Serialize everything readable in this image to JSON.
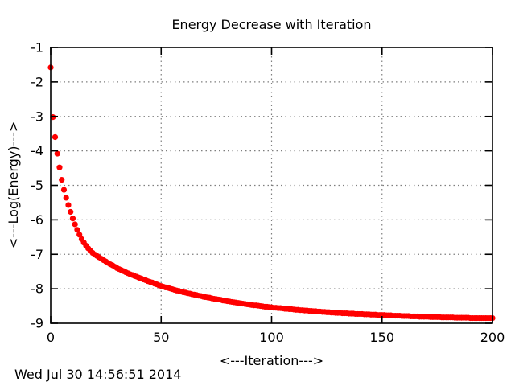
{
  "footer": {
    "timestamp": "Wed Jul 30 14:56:51 2014"
  },
  "colors": {
    "background": "#ffffff",
    "point": "#ff0000",
    "grid": "#7f7f7f",
    "axis": "#000000"
  },
  "chart_data": {
    "type": "scatter",
    "title": "Energy Decrease with Iteration",
    "xlabel": "<---Iteration--->",
    "ylabel": "<---Log(Energy)--->",
    "xlim": [
      0,
      200
    ],
    "ylim": [
      -9,
      -1
    ],
    "xticks": [
      0,
      50,
      100,
      150,
      200
    ],
    "yticks": [
      -9,
      -8,
      -7,
      -6,
      -5,
      -4,
      -3,
      -2,
      -1
    ],
    "grid": true,
    "legend": "none",
    "series": [
      {
        "name": "log-energy",
        "marker": "filled-circle",
        "color": "#ff0000",
        "x_start": 0,
        "x_step": 1,
        "y": [
          -1.58,
          -3.02,
          -3.6,
          -4.08,
          -4.48,
          -4.84,
          -5.13,
          -5.36,
          -5.57,
          -5.77,
          -5.96,
          -6.13,
          -6.29,
          -6.43,
          -6.56,
          -6.66,
          -6.75,
          -6.83,
          -6.9,
          -6.96,
          -7.01,
          -7.05,
          -7.09,
          -7.13,
          -7.17,
          -7.21,
          -7.25,
          -7.29,
          -7.32,
          -7.36,
          -7.4,
          -7.43,
          -7.46,
          -7.49,
          -7.52,
          -7.55,
          -7.58,
          -7.6,
          -7.63,
          -7.65,
          -7.68,
          -7.7,
          -7.73,
          -7.75,
          -7.78,
          -7.8,
          -7.82,
          -7.85,
          -7.87,
          -7.9,
          -7.92,
          -7.94,
          -7.96,
          -7.97,
          -7.99,
          -8.01,
          -8.03,
          -8.05,
          -8.06,
          -8.08,
          -8.1,
          -8.11,
          -8.13,
          -8.14,
          -8.16,
          -8.17,
          -8.18,
          -8.2,
          -8.21,
          -8.23,
          -8.24,
          -8.25,
          -8.26,
          -8.28,
          -8.29,
          -8.3,
          -8.31,
          -8.32,
          -8.34,
          -8.35,
          -8.36,
          -8.37,
          -8.38,
          -8.39,
          -8.4,
          -8.41,
          -8.42,
          -8.43,
          -8.44,
          -8.45,
          -8.46,
          -8.47,
          -8.48,
          -8.48,
          -8.49,
          -8.5,
          -8.51,
          -8.52,
          -8.52,
          -8.53,
          -8.54,
          -8.55,
          -8.55,
          -8.56,
          -8.56,
          -8.57,
          -8.58,
          -8.58,
          -8.59,
          -8.59,
          -8.6,
          -8.61,
          -8.61,
          -8.62,
          -8.62,
          -8.63,
          -8.63,
          -8.64,
          -8.64,
          -8.65,
          -8.65,
          -8.66,
          -8.66,
          -8.67,
          -8.67,
          -8.68,
          -8.68,
          -8.69,
          -8.69,
          -8.7,
          -8.7,
          -8.7,
          -8.71,
          -8.71,
          -8.71,
          -8.72,
          -8.72,
          -8.72,
          -8.73,
          -8.73,
          -8.73,
          -8.73,
          -8.74,
          -8.74,
          -8.74,
          -8.75,
          -8.75,
          -8.75,
          -8.76,
          -8.76,
          -8.76,
          -8.76,
          -8.77,
          -8.77,
          -8.77,
          -8.78,
          -8.78,
          -8.78,
          -8.78,
          -8.79,
          -8.79,
          -8.79,
          -8.79,
          -8.8,
          -8.8,
          -8.8,
          -8.8,
          -8.81,
          -8.81,
          -8.81,
          -8.81,
          -8.81,
          -8.82,
          -8.82,
          -8.82,
          -8.82,
          -8.82,
          -8.83,
          -8.83,
          -8.83,
          -8.83,
          -8.83,
          -8.83,
          -8.84,
          -8.84,
          -8.84,
          -8.84,
          -8.84,
          -8.84,
          -8.84,
          -8.85,
          -8.85,
          -8.85,
          -8.85,
          -8.85,
          -8.85,
          -8.85,
          -8.85,
          -8.85,
          -8.85,
          -8.85
        ]
      }
    ]
  }
}
